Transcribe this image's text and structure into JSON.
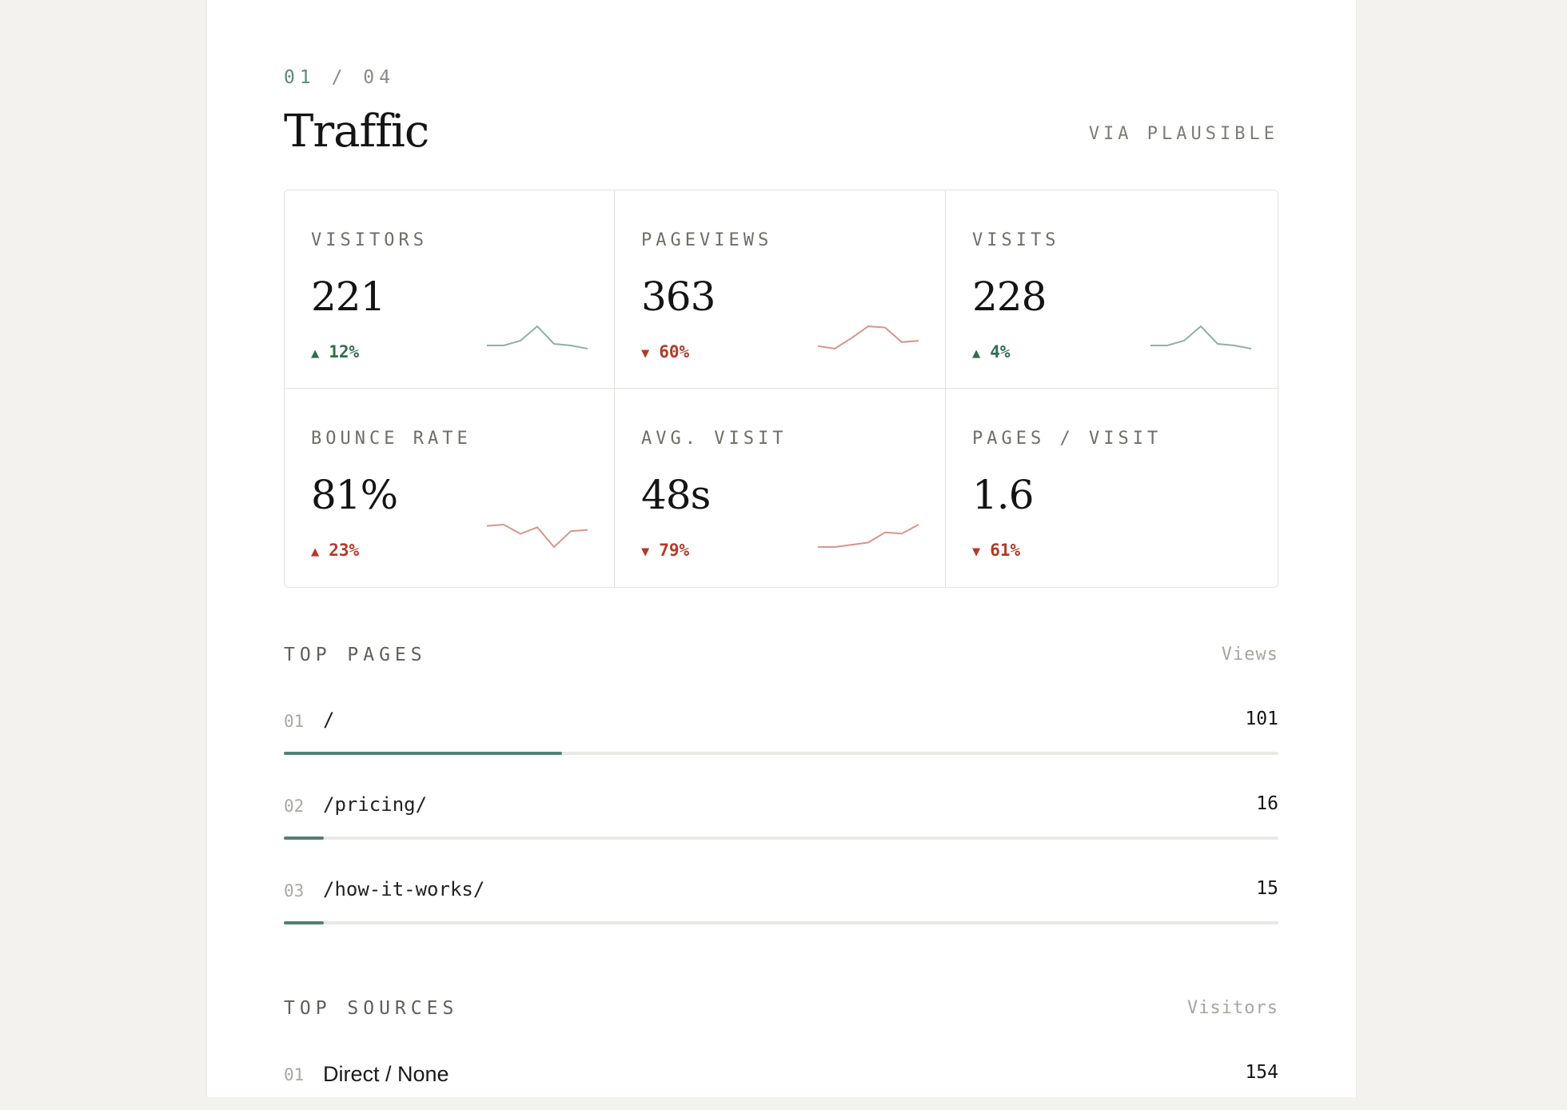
{
  "section": {
    "step_current": "01",
    "step_separator": "/",
    "step_total": "04",
    "title": "Traffic",
    "source": "VIA PLAUSIBLE"
  },
  "colors": {
    "up": "#2f6e4e",
    "down": "#b23a2a",
    "spark_up": "#8fb1a2",
    "spark_down": "#d9958a",
    "bar": "#4f8274"
  },
  "metrics": [
    {
      "label": "VISITORS",
      "value": "221",
      "delta": "12%",
      "direction": "up",
      "sparkline": [
        2,
        2,
        5,
        14,
        3,
        2,
        0
      ]
    },
    {
      "label": "PAGEVIEWS",
      "value": "363",
      "delta": "60%",
      "direction": "down",
      "sparkline": [
        2,
        0,
        8,
        17,
        16,
        5,
        6
      ]
    },
    {
      "label": "VISITS",
      "value": "228",
      "delta": "4%",
      "direction": "up",
      "sparkline": [
        2,
        2,
        5,
        14,
        3,
        2,
        0
      ]
    },
    {
      "label": "BOUNCE RATE",
      "value": "81%",
      "delta": "23%",
      "direction": "up_bad",
      "sparkline": [
        16,
        17,
        10,
        15,
        0,
        12,
        13
      ]
    },
    {
      "label": "AVG. VISIT",
      "value": "48s",
      "delta": "79%",
      "direction": "down",
      "sparkline": [
        2,
        2,
        4,
        6,
        15,
        14,
        22
      ]
    },
    {
      "label": "PAGES / VISIT",
      "value": "1.6",
      "delta": "61%",
      "direction": "down",
      "sparkline": []
    }
  ],
  "top_pages": {
    "title": "TOP PAGES",
    "column": "Views",
    "rows": [
      {
        "rank": "01",
        "path": "/",
        "value": "101",
        "share": 0.28
      },
      {
        "rank": "02",
        "path": "/pricing/",
        "value": "16",
        "share": 0.04
      },
      {
        "rank": "03",
        "path": "/how-it-works/",
        "value": "15",
        "share": 0.04
      }
    ]
  },
  "top_sources": {
    "title": "TOP SOURCES",
    "column": "Visitors",
    "rows": [
      {
        "rank": "01",
        "name": "Direct / None",
        "value": "154"
      }
    ]
  }
}
